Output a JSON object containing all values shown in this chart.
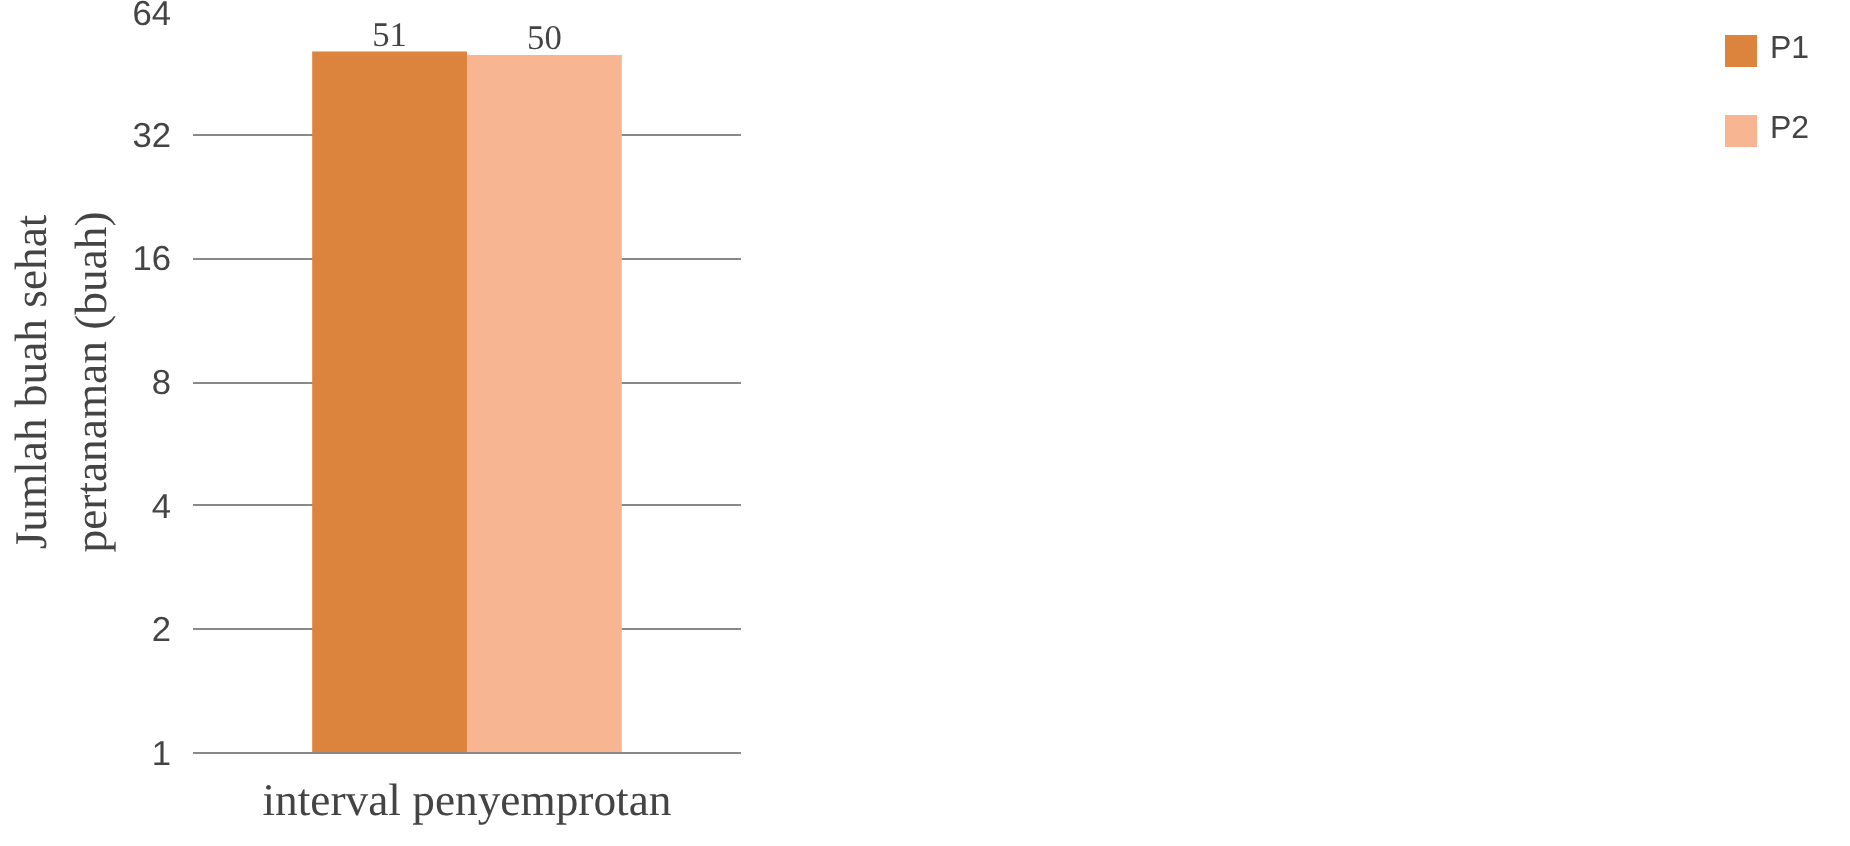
{
  "chart_data": {
    "type": "bar",
    "xlabel": "interval penyemprotan",
    "ylabel": "Jumlah buah sehat\npertanaman (buah)",
    "categories": [
      null
    ],
    "series": [
      {
        "name": "P1",
        "color": "#dc843e",
        "values": [
          51
        ]
      },
      {
        "name": "P2",
        "color": "#f8b592",
        "values": [
          50
        ]
      }
    ],
    "log": "y",
    "ylim": [
      1,
      64
    ],
    "yticks": [
      1,
      2,
      4,
      8,
      16,
      32,
      64
    ],
    "grid": "y",
    "legend": "right",
    "data_labels": true
  }
}
